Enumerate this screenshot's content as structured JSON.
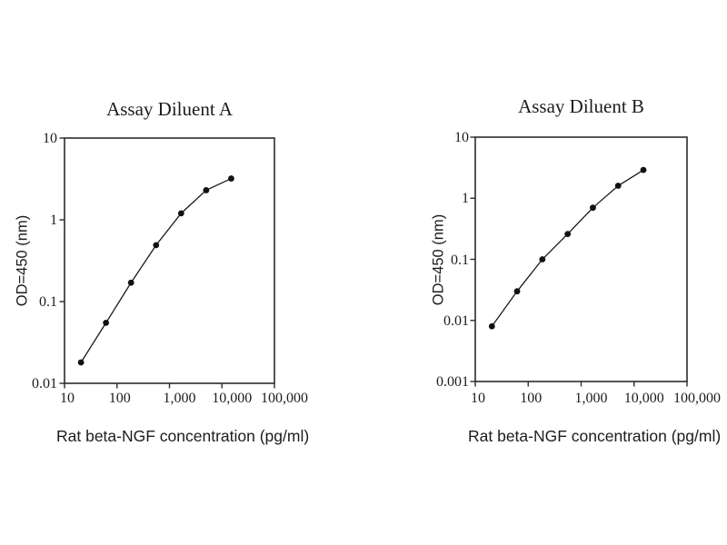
{
  "page": {
    "background": "#ffffff"
  },
  "chart_data": [
    {
      "type": "line",
      "title": "Assay Diluent A",
      "xlabel": "Rat beta-NGF concentration (pg/ml)",
      "ylabel": "OD=450 (nm)",
      "x_scale": "log",
      "y_scale": "log",
      "xlim": [
        10,
        100000
      ],
      "ylim": [
        0.01,
        10
      ],
      "x_tick_values": [
        10,
        100,
        1000,
        10000,
        100000
      ],
      "x_tick_labels": [
        "10",
        "100",
        "1,000",
        "10,000",
        "100,000"
      ],
      "y_tick_values": [
        0.01,
        0.1,
        1,
        10
      ],
      "y_tick_labels": [
        "0.01",
        "0.1",
        "1",
        "10"
      ],
      "x": [
        20.6,
        61.7,
        185,
        556,
        1667,
        5000,
        15000
      ],
      "y": [
        0.018,
        0.055,
        0.17,
        0.49,
        1.2,
        2.3,
        3.2
      ],
      "grid": false,
      "legend": "none",
      "marker": "filled-circle",
      "colors": {
        "line": "#1a1a1a",
        "marker": "#111111",
        "axis": "#2b2b2b",
        "text": "#1c1c1c"
      }
    },
    {
      "type": "line",
      "title": "Assay Diluent B",
      "xlabel": "Rat beta-NGF concentration (pg/ml)",
      "ylabel": "OD=450 (nm)",
      "x_scale": "log",
      "y_scale": "log",
      "xlim": [
        10,
        100000
      ],
      "ylim": [
        0.001,
        10
      ],
      "x_tick_values": [
        10,
        100,
        1000,
        10000,
        100000
      ],
      "x_tick_labels": [
        "10",
        "100",
        "1,000",
        "10,000",
        "100,000"
      ],
      "y_tick_values": [
        0.001,
        0.01,
        0.1,
        1,
        10
      ],
      "y_tick_labels": [
        "0.001",
        "0.01",
        "0.1",
        "1",
        "10"
      ],
      "x": [
        20.6,
        61.7,
        185,
        556,
        1667,
        5000,
        15000
      ],
      "y": [
        0.008,
        0.03,
        0.1,
        0.26,
        0.7,
        1.6,
        2.9
      ],
      "grid": false,
      "legend": "none",
      "marker": "filled-circle",
      "colors": {
        "line": "#1a1a1a",
        "marker": "#111111",
        "axis": "#2b2b2b",
        "text": "#1c1c1c"
      }
    }
  ]
}
